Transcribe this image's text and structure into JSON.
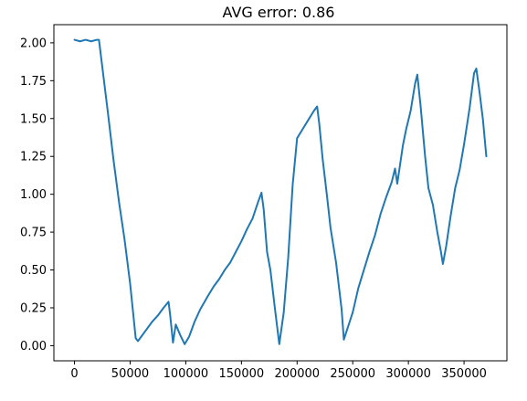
{
  "chart_data": {
    "type": "line",
    "title": "AVG error: 0.86",
    "xlabel": "",
    "ylabel": "",
    "xlim": [
      -18500,
      388500
    ],
    "ylim": [
      -0.1,
      2.12
    ],
    "grid": false,
    "x_ticks": [
      0,
      50000,
      100000,
      150000,
      200000,
      250000,
      300000,
      350000
    ],
    "x_tick_labels": [
      "0",
      "50000",
      "100000",
      "150000",
      "200000",
      "250000",
      "300000",
      "350000"
    ],
    "y_ticks": [
      0,
      0.25,
      0.5,
      0.75,
      1.0,
      1.25,
      1.5,
      1.75,
      2.0
    ],
    "y_tick_labels": [
      "0.00",
      "0.25",
      "0.50",
      "0.75",
      "1.00",
      "1.25",
      "1.50",
      "1.75",
      "2.00"
    ],
    "series": [
      {
        "color": "#1f77b4",
        "points": [
          [
            0,
            2.02
          ],
          [
            5000,
            2.01
          ],
          [
            10000,
            2.02
          ],
          [
            15000,
            2.01
          ],
          [
            20000,
            2.02
          ],
          [
            22000,
            2.02
          ],
          [
            25000,
            1.84
          ],
          [
            30000,
            1.54
          ],
          [
            35000,
            1.23
          ],
          [
            40000,
            0.95
          ],
          [
            45000,
            0.7
          ],
          [
            50000,
            0.41
          ],
          [
            55000,
            0.05
          ],
          [
            57000,
            0.03
          ],
          [
            60000,
            0.06
          ],
          [
            65000,
            0.11
          ],
          [
            70000,
            0.16
          ],
          [
            75000,
            0.2
          ],
          [
            80000,
            0.25
          ],
          [
            84500,
            0.29
          ],
          [
            86000,
            0.2
          ],
          [
            88500,
            0.02
          ],
          [
            91000,
            0.14
          ],
          [
            95000,
            0.07
          ],
          [
            99000,
            0.01
          ],
          [
            103000,
            0.06
          ],
          [
            108000,
            0.16
          ],
          [
            113000,
            0.24
          ],
          [
            120000,
            0.33
          ],
          [
            125000,
            0.39
          ],
          [
            130000,
            0.44
          ],
          [
            135000,
            0.5
          ],
          [
            140000,
            0.55
          ],
          [
            145000,
            0.62
          ],
          [
            150000,
            0.69
          ],
          [
            155000,
            0.77
          ],
          [
            160000,
            0.84
          ],
          [
            165000,
            0.95
          ],
          [
            168000,
            1.01
          ],
          [
            170000,
            0.9
          ],
          [
            173000,
            0.62
          ],
          [
            176000,
            0.5
          ],
          [
            180000,
            0.25
          ],
          [
            184000,
            0.01
          ],
          [
            188000,
            0.22
          ],
          [
            192000,
            0.58
          ],
          [
            196000,
            1.06
          ],
          [
            200000,
            1.37
          ],
          [
            205000,
            1.43
          ],
          [
            210000,
            1.49
          ],
          [
            215000,
            1.55
          ],
          [
            218000,
            1.58
          ],
          [
            220000,
            1.46
          ],
          [
            223000,
            1.23
          ],
          [
            227000,
            0.98
          ],
          [
            230000,
            0.78
          ],
          [
            235000,
            0.55
          ],
          [
            240000,
            0.24
          ],
          [
            242000,
            0.04
          ],
          [
            246000,
            0.13
          ],
          [
            250000,
            0.22
          ],
          [
            255000,
            0.38
          ],
          [
            260000,
            0.5
          ],
          [
            265000,
            0.62
          ],
          [
            270000,
            0.73
          ],
          [
            275000,
            0.87
          ],
          [
            280000,
            0.98
          ],
          [
            285000,
            1.08
          ],
          [
            288000,
            1.17
          ],
          [
            290000,
            1.07
          ],
          [
            292000,
            1.17
          ],
          [
            295000,
            1.32
          ],
          [
            298000,
            1.43
          ],
          [
            302000,
            1.55
          ],
          [
            306000,
            1.73
          ],
          [
            308000,
            1.79
          ],
          [
            311000,
            1.58
          ],
          [
            315000,
            1.25
          ],
          [
            318000,
            1.04
          ],
          [
            322000,
            0.93
          ],
          [
            326000,
            0.75
          ],
          [
            329000,
            0.63
          ],
          [
            331000,
            0.54
          ],
          [
            334000,
            0.66
          ],
          [
            338000,
            0.86
          ],
          [
            342000,
            1.04
          ],
          [
            346000,
            1.16
          ],
          [
            350000,
            1.33
          ],
          [
            355000,
            1.57
          ],
          [
            359000,
            1.8
          ],
          [
            361000,
            1.83
          ],
          [
            364000,
            1.67
          ],
          [
            367000,
            1.49
          ],
          [
            370000,
            1.25
          ]
        ]
      }
    ]
  }
}
